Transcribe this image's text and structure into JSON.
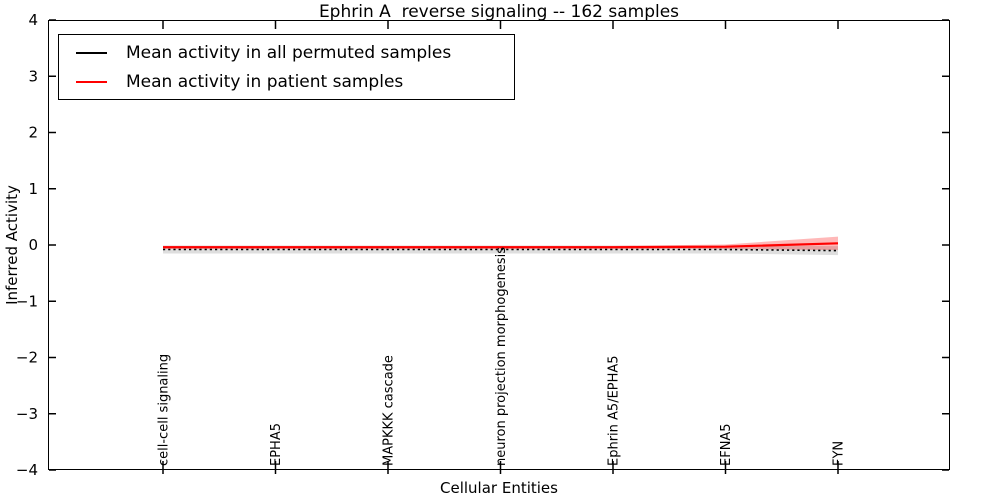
{
  "chart_data": {
    "type": "line",
    "title": "Ephrin A  reverse signaling -- 162 samples",
    "xlabel": "Cellular Entities",
    "ylabel": "Inferred Activity",
    "ylim": [
      -4,
      4
    ],
    "yticks": [
      4,
      3,
      2,
      1,
      0,
      -1,
      -2,
      -3,
      -4
    ],
    "grid": false,
    "legend_position": "upper left",
    "categories": [
      "cell-cell signaling",
      "EPHA5",
      "MAPKKK cascade",
      "neuron projection morphogenesis",
      "Ephrin A5/EPHA5",
      "EFNA5",
      "FYN"
    ],
    "series": [
      {
        "name": "Mean activity in all permuted samples",
        "color": "#000000",
        "line_style": "dotted",
        "band_color": "rgba(0,0,0,0.13)",
        "values": [
          -0.08,
          -0.08,
          -0.08,
          -0.08,
          -0.08,
          -0.08,
          -0.1
        ],
        "band": [
          0.07,
          0.07,
          0.07,
          0.07,
          0.07,
          0.07,
          0.08
        ]
      },
      {
        "name": "Mean activity in patient samples",
        "color": "#ff0000",
        "line_style": "solid",
        "band_color": "rgba(255,0,0,0.28)",
        "values": [
          -0.04,
          -0.04,
          -0.04,
          -0.04,
          -0.04,
          -0.03,
          0.03
        ],
        "band": [
          0.025,
          0.025,
          0.025,
          0.025,
          0.025,
          0.04,
          0.12
        ]
      }
    ]
  }
}
